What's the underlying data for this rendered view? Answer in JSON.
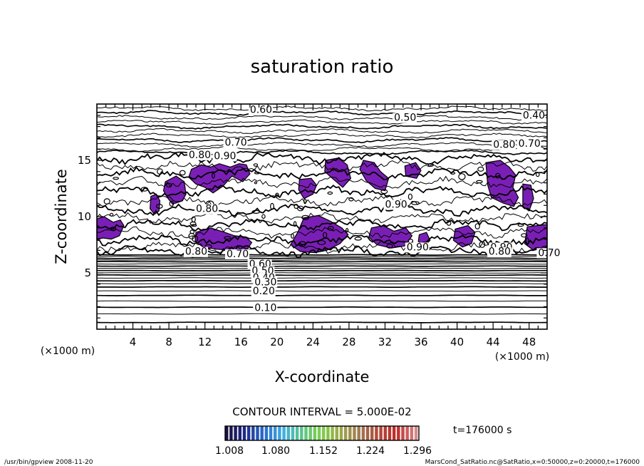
{
  "chart_data": {
    "type": "contour",
    "title": "saturation ratio",
    "xlabel": "X-coordinate",
    "ylabel": "Z-coordinate",
    "x_unit": "(×1000 m)",
    "y_unit": "(×1000 m)",
    "xlim": [
      0,
      50
    ],
    "ylim": [
      0,
      20
    ],
    "x_ticks": [
      4,
      8,
      12,
      16,
      20,
      24,
      28,
      32,
      36,
      40,
      44,
      48
    ],
    "y_ticks": [
      5,
      10,
      15
    ],
    "contour_interval_label": "CONTOUR INTERVAL = 5.000E-02",
    "time_label": "t=176000 s",
    "colorbar": {
      "ticks": [
        "1.008",
        "1.080",
        "1.152",
        "1.224",
        "1.296"
      ],
      "colors": [
        "#1a1040",
        "#1f2a8c",
        "#2a6fd0",
        "#3fb0e0",
        "#5ec48a",
        "#7fcf4a",
        "#9ea84a",
        "#a07a52",
        "#b04a3a",
        "#c02a2a",
        "#d88a8a"
      ]
    },
    "contour_labels": [
      {
        "text": "0.60",
        "x": 17.0,
        "z": 19.2
      },
      {
        "text": "0.50",
        "x": 33.0,
        "z": 18.5
      },
      {
        "text": "0.40",
        "x": 47.3,
        "z": 18.7
      },
      {
        "text": "0.70",
        "x": 14.2,
        "z": 16.3
      },
      {
        "text": "0.80",
        "x": 10.2,
        "z": 15.2
      },
      {
        "text": "0.90",
        "x": 13.0,
        "z": 15.1
      },
      {
        "text": "0.80",
        "x": 44.0,
        "z": 16.1
      },
      {
        "text": "0.70",
        "x": 46.8,
        "z": 16.2
      },
      {
        "text": "0.80",
        "x": 11.0,
        "z": 10.4
      },
      {
        "text": "0.90",
        "x": 32.0,
        "z": 10.8
      },
      {
        "text": "0.90",
        "x": 34.4,
        "z": 7.0
      },
      {
        "text": "0.80",
        "x": 9.8,
        "z": 6.6
      },
      {
        "text": "0.70",
        "x": 14.4,
        "z": 6.4
      },
      {
        "text": "0.90",
        "x": 43.7,
        "z": 7.0
      },
      {
        "text": "0.80",
        "x": 43.5,
        "z": 6.6
      },
      {
        "text": "0.70",
        "x": 49.0,
        "z": 6.5
      },
      {
        "text": "0.60",
        "x": 16.9,
        "z": 5.5
      },
      {
        "text": "0.50",
        "x": 17.2,
        "z": 4.9
      },
      {
        "text": "0.40",
        "x": 17.3,
        "z": 4.3
      },
      {
        "text": "0.30",
        "x": 17.5,
        "z": 3.9
      },
      {
        "text": "0.20",
        "x": 17.3,
        "z": 3.1
      },
      {
        "text": "0.10",
        "x": 17.5,
        "z": 1.6
      }
    ],
    "shaded_regions": [
      {
        "color": "#7a1fb5",
        "points": [
          [
            10.2,
            13.5
          ],
          [
            10.5,
            14.2
          ],
          [
            11.6,
            14.6
          ],
          [
            12.6,
            14.4
          ],
          [
            13.6,
            14.7
          ],
          [
            14.8,
            14.4
          ],
          [
            15.8,
            14.7
          ],
          [
            16.6,
            14.6
          ],
          [
            17.0,
            13.8
          ],
          [
            16.2,
            13.1
          ],
          [
            15.0,
            13.6
          ],
          [
            14.0,
            12.7
          ],
          [
            12.9,
            12.1
          ],
          [
            12.0,
            12.6
          ],
          [
            11.0,
            12.9
          ]
        ]
      },
      {
        "color": "#7a1fb5",
        "points": [
          [
            7.6,
            13.1
          ],
          [
            8.8,
            13.6
          ],
          [
            9.7,
            13.1
          ],
          [
            9.9,
            12.0
          ],
          [
            9.5,
            11.4
          ],
          [
            8.4,
            11.1
          ],
          [
            7.9,
            11.6
          ],
          [
            7.4,
            12.3
          ]
        ]
      },
      {
        "color": "#7a1fb5",
        "points": [
          [
            6.0,
            11.8
          ],
          [
            6.6,
            12.0
          ],
          [
            7.0,
            11.4
          ],
          [
            6.9,
            10.5
          ],
          [
            6.4,
            10.2
          ],
          [
            5.9,
            10.7
          ]
        ]
      },
      {
        "color": "#7a1fb5",
        "points": [
          [
            0.0,
            9.8
          ],
          [
            0.8,
            10.0
          ],
          [
            1.8,
            9.5
          ],
          [
            2.6,
            9.7
          ],
          [
            3.0,
            9.2
          ],
          [
            2.5,
            8.3
          ],
          [
            1.6,
            8.0
          ],
          [
            0.7,
            8.1
          ],
          [
            0.0,
            8.0
          ]
        ]
      },
      {
        "color": "#7a1fb5",
        "points": [
          [
            11.0,
            8.6
          ],
          [
            12.6,
            9.0
          ],
          [
            14.2,
            8.6
          ],
          [
            15.3,
            8.3
          ],
          [
            16.5,
            8.2
          ],
          [
            17.2,
            7.7
          ],
          [
            16.7,
            7.1
          ],
          [
            15.1,
            7.0
          ],
          [
            13.3,
            7.1
          ],
          [
            11.8,
            7.3
          ],
          [
            10.9,
            7.8
          ]
        ]
      },
      {
        "color": "#7a1fb5",
        "points": [
          [
            23.0,
            9.9
          ],
          [
            24.6,
            10.1
          ],
          [
            25.9,
            9.6
          ],
          [
            27.2,
            9.0
          ],
          [
            27.9,
            8.4
          ],
          [
            27.0,
            7.6
          ],
          [
            25.5,
            7.0
          ],
          [
            24.2,
            6.8
          ],
          [
            22.6,
            6.9
          ],
          [
            21.5,
            7.5
          ],
          [
            22.3,
            8.6
          ]
        ]
      },
      {
        "color": "#7a1fb5",
        "points": [
          [
            22.5,
            13.3
          ],
          [
            23.8,
            13.4
          ],
          [
            24.4,
            12.8
          ],
          [
            24.0,
            12.0
          ],
          [
            23.0,
            11.6
          ],
          [
            22.4,
            12.4
          ]
        ]
      },
      {
        "color": "#7a1fb5",
        "points": [
          [
            25.4,
            15.0
          ],
          [
            26.8,
            15.2
          ],
          [
            27.8,
            14.6
          ],
          [
            28.2,
            13.4
          ],
          [
            27.3,
            12.6
          ],
          [
            26.3,
            13.3
          ],
          [
            25.3,
            14.0
          ]
        ]
      },
      {
        "color": "#7a1fb5",
        "points": [
          [
            29.6,
            15.0
          ],
          [
            30.8,
            14.8
          ],
          [
            31.5,
            14.0
          ],
          [
            32.4,
            13.4
          ],
          [
            32.0,
            12.3
          ],
          [
            30.9,
            12.5
          ],
          [
            29.9,
            13.2
          ],
          [
            29.2,
            14.2
          ]
        ]
      },
      {
        "color": "#7a1fb5",
        "points": [
          [
            34.2,
            14.5
          ],
          [
            35.4,
            14.8
          ],
          [
            36.0,
            14.1
          ],
          [
            35.5,
            13.4
          ],
          [
            34.3,
            13.6
          ]
        ]
      },
      {
        "color": "#7a1fb5",
        "points": [
          [
            30.5,
            9.0
          ],
          [
            31.8,
            9.2
          ],
          [
            33.0,
            8.7
          ],
          [
            34.3,
            9.0
          ],
          [
            35.0,
            8.3
          ],
          [
            34.2,
            7.4
          ],
          [
            32.7,
            7.2
          ],
          [
            31.1,
            7.5
          ],
          [
            30.2,
            8.2
          ]
        ]
      },
      {
        "color": "#7a1fb5",
        "points": [
          [
            35.8,
            8.4
          ],
          [
            36.6,
            8.6
          ],
          [
            37.0,
            7.9
          ],
          [
            36.4,
            7.4
          ],
          [
            35.7,
            7.8
          ]
        ]
      },
      {
        "color": "#7a1fb5",
        "points": [
          [
            39.8,
            8.9
          ],
          [
            41.2,
            9.2
          ],
          [
            42.0,
            8.6
          ],
          [
            41.6,
            7.6
          ],
          [
            40.6,
            7.3
          ],
          [
            39.6,
            7.9
          ]
        ]
      },
      {
        "color": "#7a1fb5",
        "points": [
          [
            43.2,
            14.8
          ],
          [
            44.8,
            15.0
          ],
          [
            45.8,
            14.4
          ],
          [
            46.5,
            13.7
          ],
          [
            46.2,
            12.6
          ],
          [
            46.8,
            11.7
          ],
          [
            46.3,
            10.9
          ],
          [
            45.1,
            11.2
          ],
          [
            43.8,
            11.7
          ],
          [
            43.4,
            12.8
          ]
        ]
      },
      {
        "color": "#7a1fb5",
        "points": [
          [
            47.3,
            12.9
          ],
          [
            48.2,
            12.8
          ],
          [
            48.5,
            11.6
          ],
          [
            48.0,
            10.5
          ],
          [
            47.3,
            10.9
          ]
        ]
      },
      {
        "color": "#7a1fb5",
        "points": [
          [
            47.8,
            9.1
          ],
          [
            50.0,
            9.3
          ],
          [
            50.0,
            7.3
          ],
          [
            48.5,
            7.0
          ],
          [
            47.5,
            7.6
          ]
        ]
      }
    ]
  },
  "footer": {
    "left": "/usr/bin/gpview   2008-11-20",
    "right": "MarsCond_SatRatio.nc@SatRatio,x=0:50000,z=0:20000,t=176000"
  }
}
